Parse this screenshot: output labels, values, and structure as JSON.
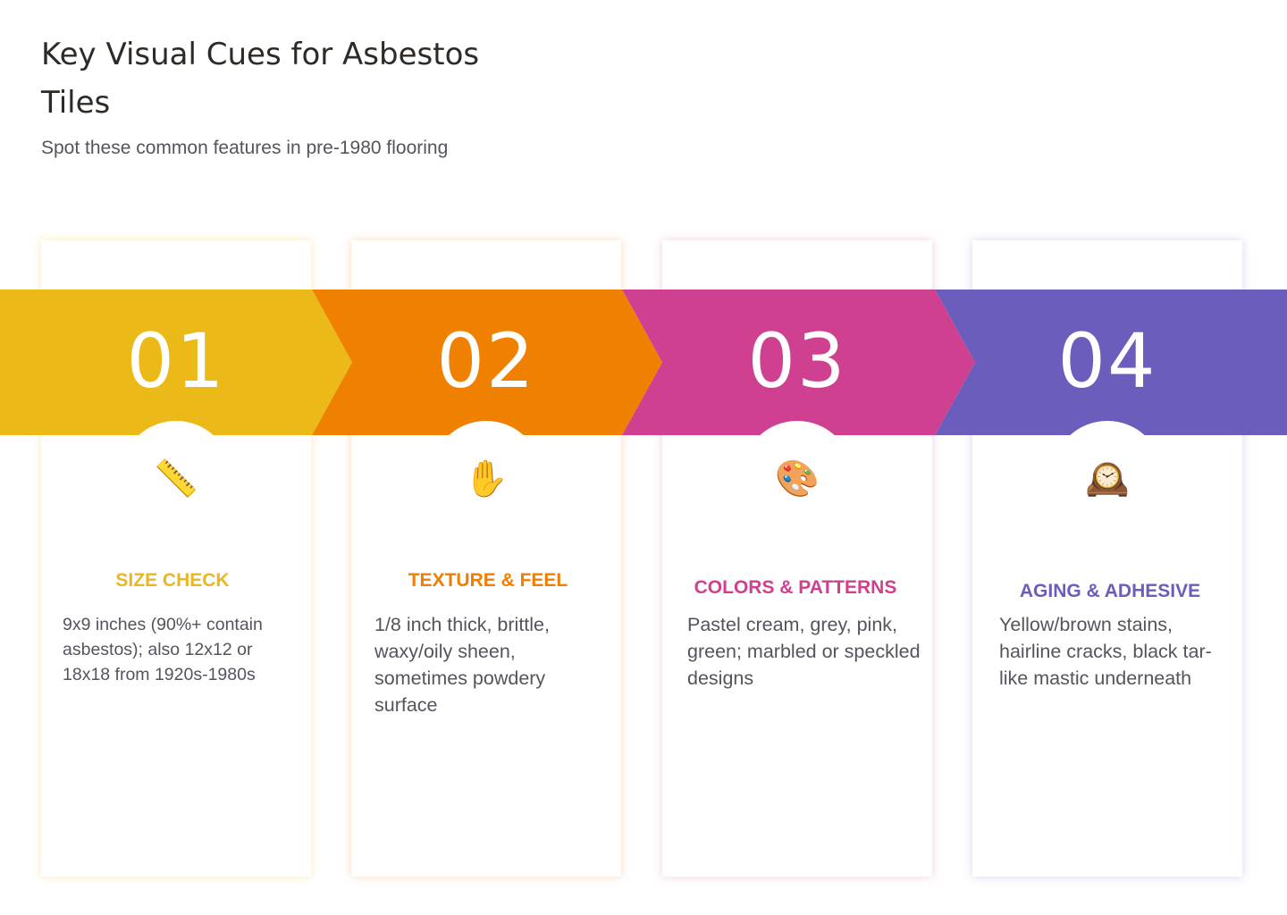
{
  "header": {
    "title": "Key Visual Cues for Asbestos Tiles",
    "subtitle": "Spot these common features in pre-1980 flooring"
  },
  "steps": [
    {
      "number": "01",
      "icon": "ruler-icon",
      "icon_glyph": "📏",
      "title": "SIZE CHECK",
      "description": "9x9 inches (90%+ contain asbestos); also 12x12 or 18x18 from 1920s-1980s",
      "color": "#EBB918"
    },
    {
      "number": "02",
      "icon": "raised-hand-icon",
      "icon_glyph": "✋",
      "title": "TEXTURE & FEEL",
      "description": "1/8 inch thick, brittle, waxy/oily sheen, sometimes powdery surface",
      "color": "#F08000"
    },
    {
      "number": "03",
      "icon": "palette-icon",
      "icon_glyph": "🎨",
      "title": "COLORS & PATTERNS",
      "description": "Pastel cream, grey, pink, green; marbled or speckled designs",
      "color": "#D04090"
    },
    {
      "number": "04",
      "icon": "mantelpiece-clock-icon",
      "icon_glyph": "🕰️",
      "title": "AGING & ADHESIVE",
      "description": "Yellow/brown stains, hairline cracks, black tar-like mastic underneath",
      "color": "#6A5DBC"
    }
  ]
}
